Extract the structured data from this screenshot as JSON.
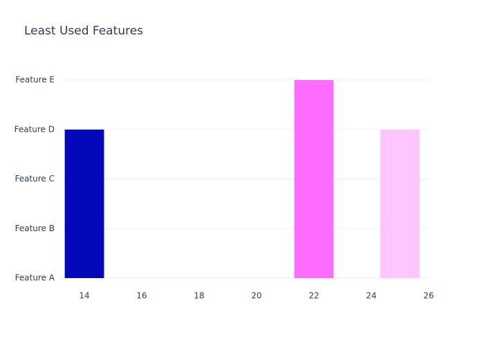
{
  "chart_data": {
    "type": "bar",
    "title": "Least Used Features",
    "categories": [
      "Feature A",
      "Feature B",
      "Feature C",
      "Feature D",
      "Feature E"
    ],
    "x": [
      14,
      22,
      25
    ],
    "values": [
      "Feature D",
      "Feature E",
      "Feature D"
    ],
    "colors": [
      "#0508b8",
      "#fd6bff",
      "#fec5fe"
    ],
    "xlim": [
      13.3,
      26
    ],
    "xticks": [
      14,
      16,
      18,
      20,
      22,
      24,
      26
    ],
    "grid": true
  }
}
